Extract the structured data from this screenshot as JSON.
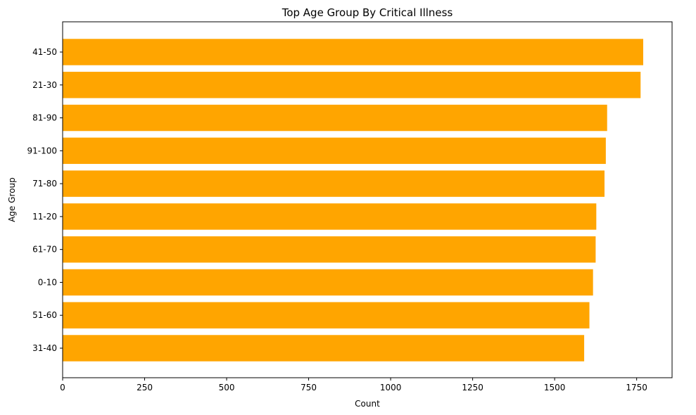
{
  "chart_data": {
    "type": "bar",
    "orientation": "horizontal",
    "title": "Top Age Group By Critical Illness",
    "xlabel": "Count",
    "ylabel": "Age Group",
    "categories": [
      "41-50",
      "21-30",
      "81-90",
      "91-100",
      "71-80",
      "11-20",
      "61-70",
      "0-10",
      "51-60",
      "31-40"
    ],
    "values": [
      1770,
      1762,
      1660,
      1656,
      1652,
      1627,
      1625,
      1617,
      1606,
      1590
    ],
    "xlim": [
      0,
      1858
    ],
    "xticks": [
      "0",
      "250",
      "500",
      "750",
      "1000",
      "1250",
      "1500",
      "1750"
    ],
    "grid": false,
    "bar_color": "#FFA500"
  }
}
